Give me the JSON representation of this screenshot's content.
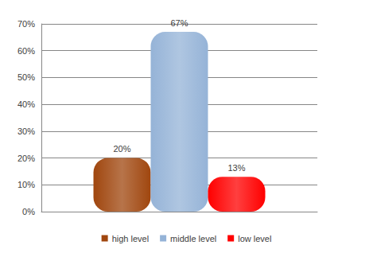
{
  "chart_data": {
    "type": "bar",
    "categories": [
      null
    ],
    "series": [
      {
        "name": "high level",
        "color": "#a0460e",
        "values": [
          20
        ],
        "value_labels": [
          "20%"
        ]
      },
      {
        "name": "middle level",
        "color": "#95b3d7",
        "values": [
          67
        ],
        "value_labels": [
          "67%"
        ]
      },
      {
        "name": "low level",
        "color": "#ff0000",
        "values": [
          13
        ],
        "value_labels": [
          "13%"
        ]
      }
    ],
    "ylim": [
      0,
      70
    ],
    "yticks": [
      {
        "value": 0,
        "label": "0%"
      },
      {
        "value": 10,
        "label": "10%"
      },
      {
        "value": 20,
        "label": "20%"
      },
      {
        "value": 30,
        "label": "30%"
      },
      {
        "value": 40,
        "label": "40%"
      },
      {
        "value": 50,
        "label": "50%"
      },
      {
        "value": 60,
        "label": "60%"
      },
      {
        "value": 70,
        "label": "70%"
      }
    ],
    "grid": true,
    "legend": "bottom",
    "data_labels": true,
    "tick_labels": "y"
  }
}
